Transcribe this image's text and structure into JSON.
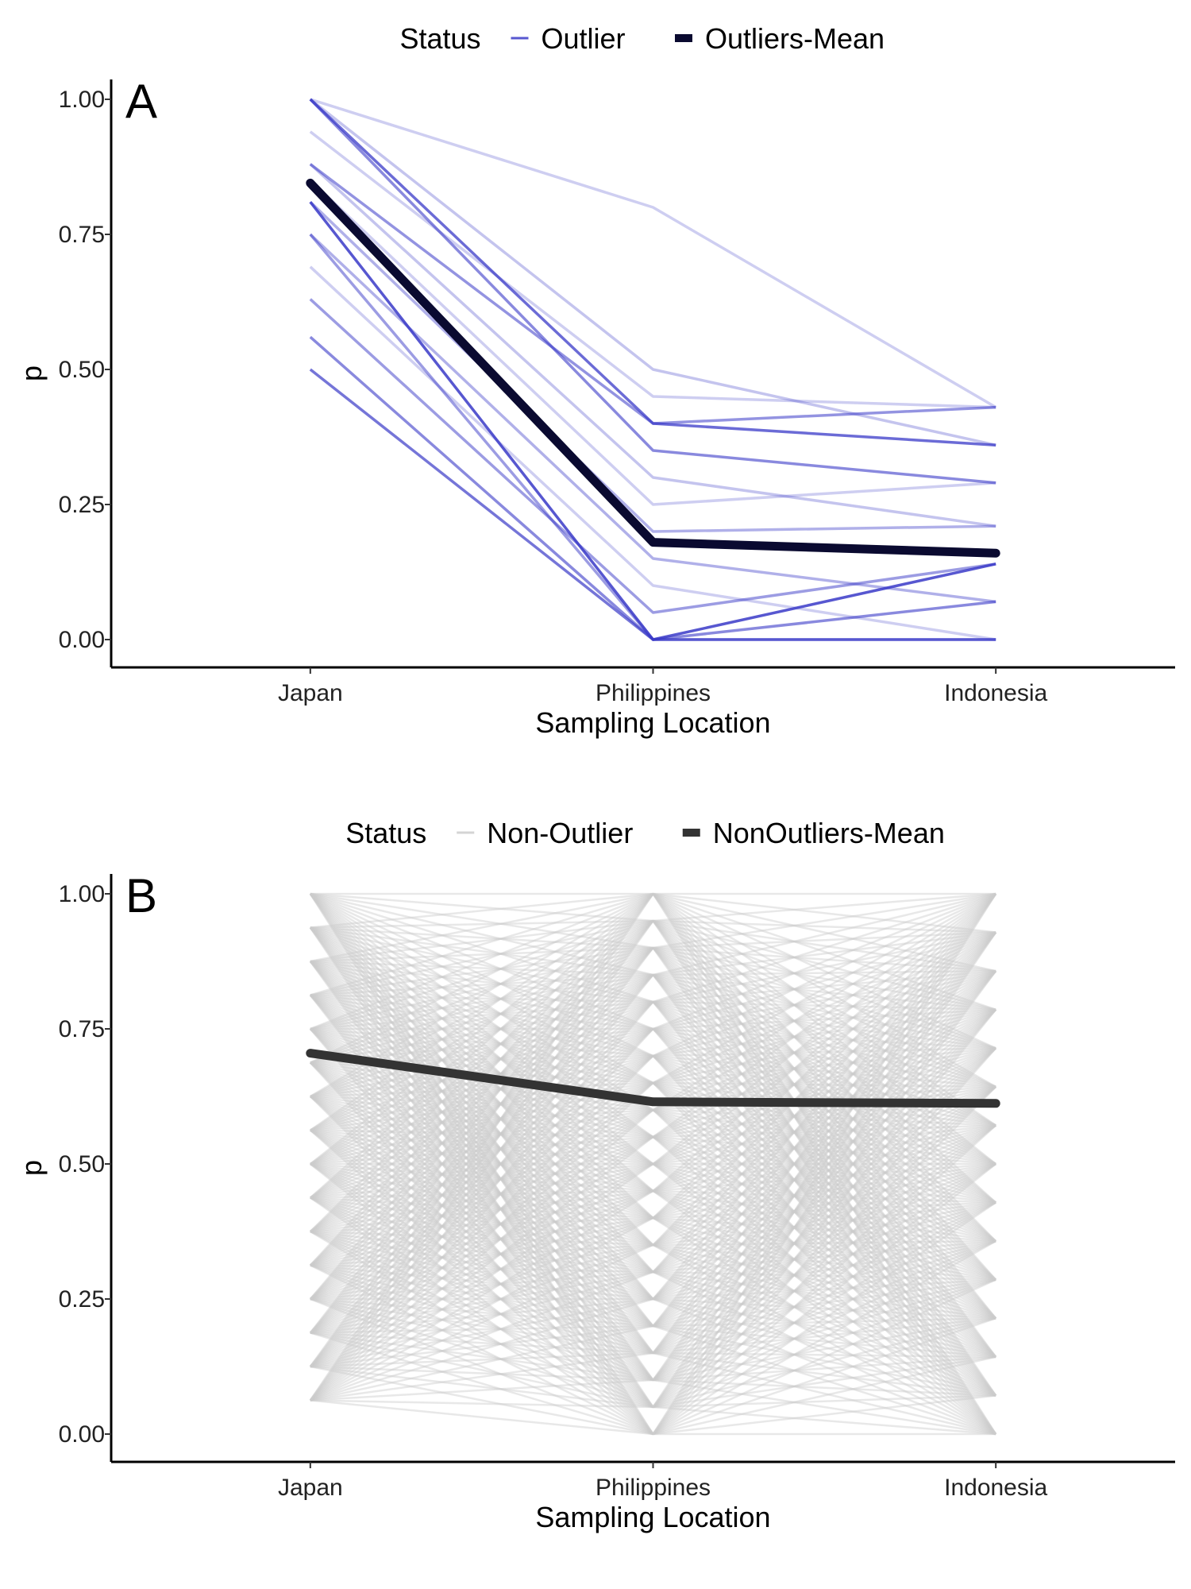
{
  "chart_data": [
    {
      "type": "line",
      "panel_tag": "A",
      "xlabel": "Sampling Location",
      "ylabel": "p",
      "categories": [
        "Japan",
        "Philippines",
        "Indonesia"
      ],
      "ylim": [
        0,
        1
      ],
      "yticks": [
        "0.00",
        "0.25",
        "0.50",
        "0.75",
        "1.00"
      ],
      "grid": false,
      "legend": {
        "position": "top",
        "title": "Status",
        "entries": [
          {
            "label": "Outlier",
            "color": "#3a3ac8",
            "style": "thin"
          },
          {
            "label": "Outliers-Mean",
            "color": "#0a0a30",
            "style": "thick"
          }
        ]
      },
      "series_color": "#3a3ac8",
      "mean_color": "#0a0a30",
      "series": [
        {
          "values": [
            1.0,
            0.8,
            0.43
          ],
          "opacity": 0.25
        },
        {
          "values": [
            1.0,
            0.4,
            0.36
          ],
          "opacity": 0.75
        },
        {
          "values": [
            1.0,
            0.35,
            0.29
          ],
          "opacity": 0.6
        },
        {
          "values": [
            1.0,
            0.5,
            0.36
          ],
          "opacity": 0.3
        },
        {
          "values": [
            0.94,
            0.45,
            0.43
          ],
          "opacity": 0.25
        },
        {
          "values": [
            0.88,
            0.4,
            0.43
          ],
          "opacity": 0.55
        },
        {
          "values": [
            0.88,
            0.3,
            0.21
          ],
          "opacity": 0.3
        },
        {
          "values": [
            0.85,
            0.25,
            0.29
          ],
          "opacity": 0.25
        },
        {
          "values": [
            0.81,
            0.0,
            0.14
          ],
          "opacity": 0.85
        },
        {
          "values": [
            0.81,
            0.2,
            0.21
          ],
          "opacity": 0.4
        },
        {
          "values": [
            0.75,
            0.15,
            0.07
          ],
          "opacity": 0.4
        },
        {
          "values": [
            0.75,
            0.0,
            0.0
          ],
          "opacity": 0.5
        },
        {
          "values": [
            0.69,
            0.1,
            0.0
          ],
          "opacity": 0.25
        },
        {
          "values": [
            0.63,
            0.05,
            0.14
          ],
          "opacity": 0.5
        },
        {
          "values": [
            0.56,
            0.0,
            0.07
          ],
          "opacity": 0.6
        },
        {
          "values": [
            0.5,
            0.0,
            0.0
          ],
          "opacity": 0.7
        }
      ],
      "mean": {
        "name": "Outliers-Mean",
        "values": [
          0.845,
          0.18,
          0.16
        ]
      }
    },
    {
      "type": "line",
      "panel_tag": "B",
      "xlabel": "Sampling Location",
      "ylabel": "p",
      "categories": [
        "Japan",
        "Philippines",
        "Indonesia"
      ],
      "ylim": [
        0,
        1
      ],
      "yticks": [
        "0.00",
        "0.25",
        "0.50",
        "0.75",
        "1.00"
      ],
      "grid": false,
      "legend": {
        "position": "top",
        "title": "Status",
        "entries": [
          {
            "label": "Non-Outlier",
            "color": "#cccccc",
            "style": "thin"
          },
          {
            "label": "NonOutliers-Mean",
            "color": "#333333",
            "style": "thick"
          }
        ]
      },
      "series_color": "#cccccc",
      "mean_color": "#333333",
      "levels": {
        "Japan": [
          0.0625,
          0.125,
          0.1875,
          0.25,
          0.3125,
          0.375,
          0.4375,
          0.5,
          0.5625,
          0.625,
          0.6875,
          0.75,
          0.8125,
          0.875,
          0.9375,
          1.0
        ],
        "Philippines": [
          0.0,
          0.05,
          0.1,
          0.15,
          0.2,
          0.25,
          0.3,
          0.35,
          0.4,
          0.45,
          0.5,
          0.55,
          0.6,
          0.65,
          0.7,
          0.75,
          0.8,
          0.85,
          0.9,
          0.95,
          1.0
        ],
        "Indonesia": [
          0.0,
          0.0714,
          0.1429,
          0.2143,
          0.2857,
          0.3571,
          0.4286,
          0.5,
          0.5714,
          0.6429,
          0.7143,
          0.7857,
          0.8571,
          0.9286,
          1.0
        ]
      },
      "mean": {
        "name": "NonOutliers-Mean",
        "values": [
          0.705,
          0.615,
          0.612
        ]
      }
    }
  ]
}
